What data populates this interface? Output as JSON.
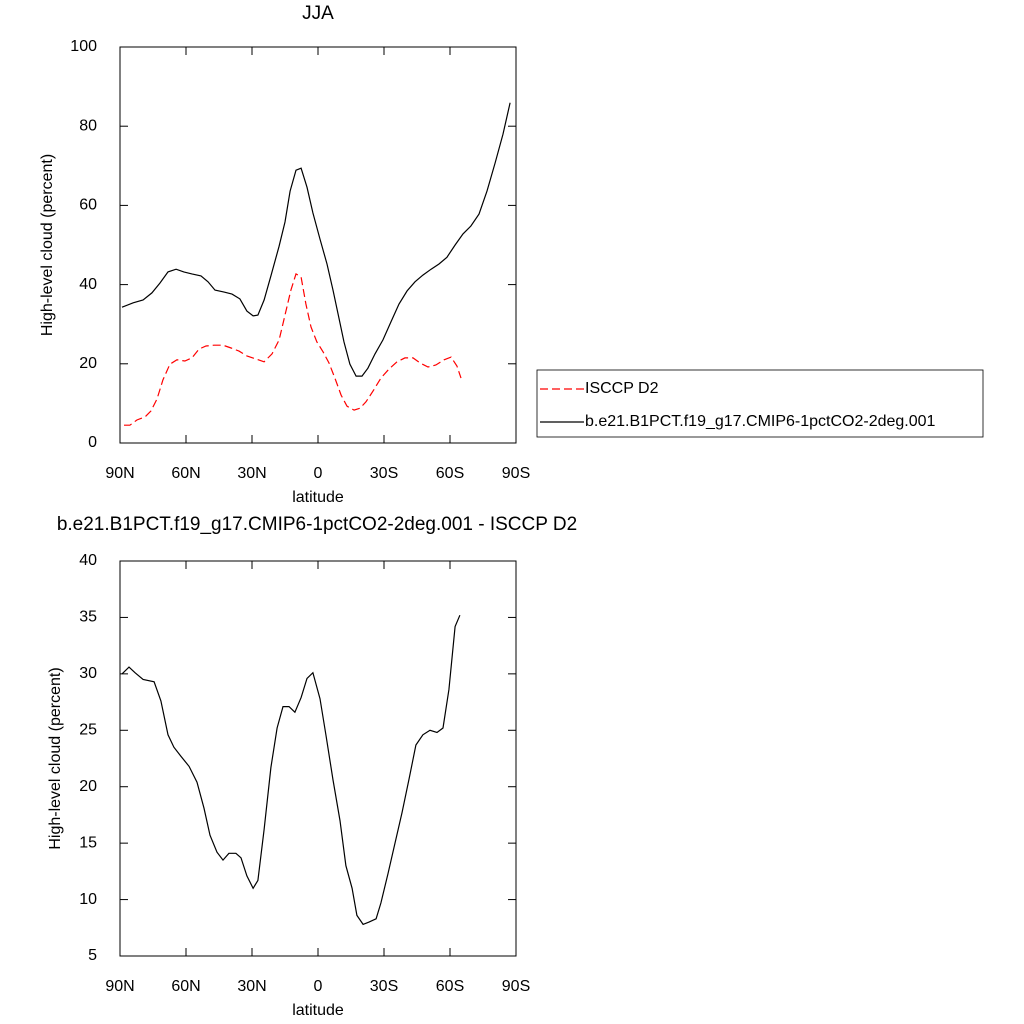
{
  "chart_data": [
    {
      "type": "line",
      "title": "JJA",
      "xlabel": "latitude",
      "ylabel": "High-level cloud (percent)",
      "xlim": [
        90,
        -90
      ],
      "xticks": [
        {
          "value": 90,
          "label": "90N"
        },
        {
          "value": 60,
          "label": "60N"
        },
        {
          "value": 30,
          "label": "30N"
        },
        0,
        {
          "value": -30,
          "label": "30S"
        },
        {
          "value": -60,
          "label": "60S"
        },
        {
          "value": -90,
          "label": "90S"
        }
      ],
      "ylim": [
        0,
        100
      ],
      "yticks": [
        0,
        20,
        40,
        60,
        80,
        100
      ],
      "legend": "outside-right",
      "series": [
        {
          "name": "ISCCP D2",
          "color": "#ff0000",
          "line_style": "dashed",
          "x": [
            88.2,
            85.5,
            82.3,
            78.6,
            75.9,
            73.2,
            70.5,
            67.3,
            64.1,
            60.5,
            57.3,
            54.1,
            50.9,
            47.3,
            43.2,
            39.5,
            35.9,
            32.3,
            28.2,
            24.5,
            20.9,
            17.7,
            15,
            12.3,
            10,
            7.7,
            5.5,
            3.2,
            0.5,
            -2.3,
            -5,
            -7.7,
            -10.5,
            -13.2,
            -16.4,
            -19.1,
            -21.8,
            -25,
            -28.6,
            -32.3,
            -35.9,
            -39.5,
            -43.2,
            -46.4,
            -50,
            -53.6,
            -57.3,
            -60.5,
            -63.2,
            -65
          ],
          "values": [
            4.5,
            4.5,
            5.8,
            6.6,
            8.1,
            11.1,
            15.9,
            19.9,
            21,
            20.7,
            21.5,
            23.7,
            24.5,
            24.7,
            24.7,
            24,
            23.2,
            22,
            21.2,
            20.5,
            22.5,
            26,
            32.3,
            38.6,
            42.7,
            41.9,
            35.1,
            29.3,
            25.5,
            23,
            20.2,
            16.4,
            12.1,
            9.3,
            8.3,
            8.8,
            10.4,
            13.1,
            16.4,
            18.7,
            20.5,
            21.5,
            21.5,
            20.2,
            19.2,
            19.7,
            21,
            21.7,
            19.4,
            16.4
          ]
        },
        {
          "name": "b.e21.B1PCT.f19_g17.CMIP6-1pctCO2-2deg.001",
          "color": "#000000",
          "line_style": "solid",
          "x": [
            89.1,
            84,
            79.5,
            75.5,
            71.8,
            68.2,
            64.5,
            61,
            57.3,
            53.2,
            50,
            46.8,
            42.7,
            39.1,
            35.5,
            32.3,
            29.5,
            27.3,
            24.5,
            21.4,
            17.7,
            15,
            12.7,
            10,
            7.7,
            5,
            2.3,
            -0.9,
            -4.1,
            -6.8,
            -9.5,
            -11.8,
            -14.5,
            -17.3,
            -20,
            -22.7,
            -25.9,
            -29.5,
            -33.2,
            -36.8,
            -40.5,
            -44.1,
            -47.7,
            -51.4,
            -55,
            -58.6,
            -62.3,
            -65.9,
            -69.5,
            -73.2,
            -76.8,
            -80.5,
            -84.1,
            -87.3
          ],
          "values": [
            34.3,
            35.4,
            36.1,
            37.9,
            40.4,
            43.2,
            43.9,
            43.2,
            42.7,
            42.2,
            40.7,
            38.6,
            38.1,
            37.6,
            36.4,
            33.3,
            32.1,
            32.3,
            36.1,
            42.2,
            49.7,
            55.8,
            63.6,
            68.9,
            69.4,
            64.6,
            58.1,
            51.5,
            45.2,
            38.6,
            31.6,
            25.5,
            19.9,
            16.9,
            16.9,
            18.9,
            22.5,
            26,
            30.6,
            35.1,
            38.4,
            40.7,
            42.4,
            43.9,
            45.2,
            46.9,
            50,
            52.8,
            54.8,
            57.8,
            63.6,
            70.7,
            78,
            85.9
          ]
        }
      ]
    },
    {
      "type": "line",
      "title": "b.e21.B1PCT.f19_g17.CMIP6-1pctCO2-2deg.001 - ISCCP D2",
      "xlabel": "latitude",
      "ylabel": "High-level cloud (percent)",
      "xlim": [
        90,
        -90
      ],
      "xticks": [
        {
          "value": 90,
          "label": "90N"
        },
        {
          "value": 60,
          "label": "60N"
        },
        {
          "value": 30,
          "label": "30N"
        },
        0,
        {
          "value": -30,
          "label": "30S"
        },
        {
          "value": -60,
          "label": "60S"
        },
        {
          "value": -90,
          "label": "90S"
        }
      ],
      "ylim": [
        5,
        40
      ],
      "yticks": [
        5,
        10,
        15,
        20,
        25,
        30,
        35,
        40
      ],
      "series": [
        {
          "color": "#000000",
          "line_style": "solid",
          "x": [
            89.1,
            85.9,
            83.2,
            79.5,
            74.5,
            71.4,
            68.2,
            65.5,
            62.3,
            58.6,
            55,
            51.8,
            49.1,
            45.9,
            43.2,
            40.5,
            37.3,
            35,
            32.3,
            29.5,
            27.3,
            24.5,
            21.4,
            18.6,
            15.9,
            13.2,
            10.5,
            7.7,
            5,
            2.3,
            -0.9,
            -3.6,
            -6.8,
            -10,
            -12.7,
            -15.5,
            -17.7,
            -20.5,
            -23.2,
            -26.4,
            -28.6,
            -31.8,
            -35,
            -38.2,
            -41.4,
            -44.5,
            -47.7,
            -50.9,
            -54.1,
            -56.8,
            -59.5,
            -62.3,
            -64.5
          ],
          "values": [
            30,
            30.6,
            30.1,
            29.5,
            29.3,
            27.6,
            24.6,
            23.5,
            22.7,
            21.8,
            20.4,
            18.1,
            15.7,
            14.2,
            13.5,
            14.1,
            14.1,
            13.7,
            12.1,
            11,
            11.7,
            16.2,
            21.7,
            25.2,
            27.1,
            27.1,
            26.6,
            27.9,
            29.6,
            30.1,
            27.8,
            24.6,
            20.6,
            17,
            13,
            11,
            8.6,
            7.8,
            8,
            8.3,
            9.7,
            12.3,
            15,
            17.7,
            20.7,
            23.7,
            24.6,
            25,
            24.8,
            25.2,
            28.6,
            34.2,
            35.2
          ]
        }
      ]
    }
  ]
}
